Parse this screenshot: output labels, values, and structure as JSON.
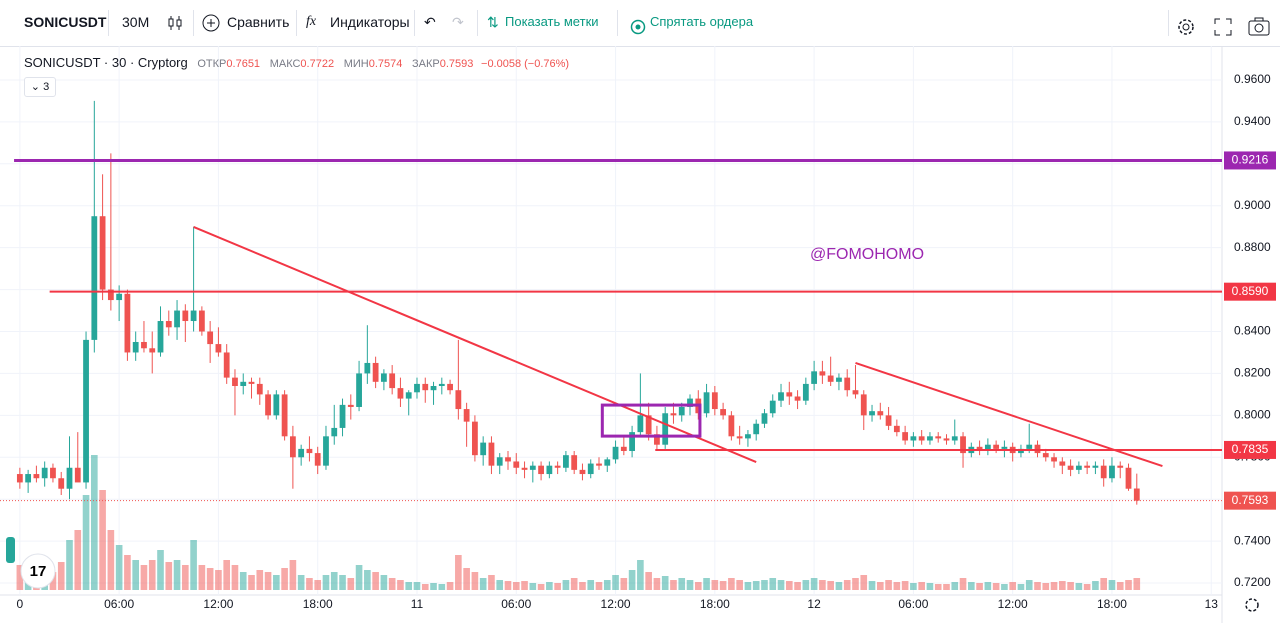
{
  "toolbar": {
    "symbol": "SONICUSDT",
    "interval": "30M",
    "compare": "Сравнить",
    "indicators": "Индикаторы",
    "show_marks": "Показать метки",
    "hide_orders": "Спрятать ордера"
  },
  "legend": {
    "title": "SONICUSDT · 30 · Cryptorg",
    "ohlc_labels": [
      "ОТКР",
      "МАКС",
      "МИН",
      "ЗАКР"
    ],
    "change": "−0.0058 (−0.76%)",
    "indicators_count": "3"
  },
  "chart_data": {
    "type": "candlestick",
    "watermark": "@FOMOHOMO",
    "up_color": "#26a69a",
    "down_color": "#ef5350",
    "grid": true,
    "xlim": [
      -2.4,
      145.3
    ],
    "ylim": [
      0.7143,
      0.9762
    ],
    "xticks": [
      {
        "value": 0,
        "label": "0"
      },
      {
        "value": 12,
        "label": "06:00"
      },
      {
        "value": 24,
        "label": "12:00"
      },
      {
        "value": 36,
        "label": "18:00"
      },
      {
        "value": 48,
        "label": "11"
      },
      {
        "value": 60,
        "label": "06:00"
      },
      {
        "value": 72,
        "label": "12:00"
      },
      {
        "value": 84,
        "label": "18:00"
      },
      {
        "value": 96,
        "label": "12"
      },
      {
        "value": 108,
        "label": "06:00"
      },
      {
        "value": 120,
        "label": "12:00"
      },
      {
        "value": 132,
        "label": "18:00"
      },
      {
        "value": 144,
        "label": "13"
      }
    ],
    "yticks": [
      {
        "value": 0.72,
        "label": "0.7200"
      },
      {
        "value": 0.74,
        "label": "0.7400"
      },
      {
        "value": 0.76,
        "label": "0.7600"
      },
      {
        "value": 0.78,
        "label": "0.7800"
      },
      {
        "value": 0.8,
        "label": "0.8000"
      },
      {
        "value": 0.82,
        "label": "0.8200"
      },
      {
        "value": 0.84,
        "label": "0.8400"
      },
      {
        "value": 0.86,
        "label": "0.8600"
      },
      {
        "value": 0.88,
        "label": "0.8800"
      },
      {
        "value": 0.9,
        "label": "0.9000"
      },
      {
        "value": 0.92,
        "label": "0.9200"
      },
      {
        "value": 0.94,
        "label": "0.9400"
      },
      {
        "value": 0.96,
        "label": "0.9600"
      }
    ],
    "levels": [
      {
        "value": 0.9216,
        "label": "0.9216",
        "color": "#9c27b0",
        "from": -0.7
      },
      {
        "value": 0.859,
        "label": "0.8590",
        "color": "#f23645",
        "from": 3.6
      },
      {
        "value": 0.7835,
        "label": "0.7835",
        "color": "#f23645",
        "from": 76.8
      }
    ],
    "drawings": [
      {
        "type": "trendline",
        "x": [
          21,
          89
        ],
        "y": [
          0.8899,
          0.7777
        ],
        "color": "#f23645"
      },
      {
        "type": "trendline",
        "x": [
          101,
          138.1
        ],
        "y": [
          0.825,
          0.7758
        ],
        "color": "#f23645"
      },
      {
        "type": "rectangle",
        "x": [
          70.4,
          82.2
        ],
        "y": [
          0.8049,
          0.7901
        ],
        "color": "#9c27b0"
      }
    ],
    "candles": [
      [
        0.772,
        0.775,
        0.765,
        0.768,
        25
      ],
      [
        0.768,
        0.774,
        0.763,
        0.772,
        20
      ],
      [
        0.772,
        0.776,
        0.768,
        0.77,
        15
      ],
      [
        0.77,
        0.778,
        0.766,
        0.775,
        22
      ],
      [
        0.775,
        0.777,
        0.768,
        0.77,
        18
      ],
      [
        0.77,
        0.773,
        0.762,
        0.765,
        28
      ],
      [
        0.765,
        0.79,
        0.76,
        0.775,
        50
      ],
      [
        0.775,
        0.792,
        0.77,
        0.768,
        60
      ],
      [
        0.768,
        0.84,
        0.765,
        0.836,
        95
      ],
      [
        0.836,
        0.95,
        0.83,
        0.895,
        135
      ],
      [
        0.895,
        0.915,
        0.855,
        0.86,
        100
      ],
      [
        0.86,
        0.925,
        0.85,
        0.855,
        60
      ],
      [
        0.855,
        0.862,
        0.845,
        0.858,
        45
      ],
      [
        0.858,
        0.86,
        0.826,
        0.83,
        35
      ],
      [
        0.83,
        0.84,
        0.826,
        0.835,
        30
      ],
      [
        0.835,
        0.845,
        0.83,
        0.832,
        25
      ],
      [
        0.832,
        0.84,
        0.82,
        0.83,
        30
      ],
      [
        0.83,
        0.852,
        0.828,
        0.845,
        40
      ],
      [
        0.845,
        0.85,
        0.838,
        0.842,
        28
      ],
      [
        0.842,
        0.855,
        0.836,
        0.85,
        30
      ],
      [
        0.85,
        0.853,
        0.835,
        0.845,
        25
      ],
      [
        0.845,
        0.89,
        0.84,
        0.85,
        50
      ],
      [
        0.85,
        0.852,
        0.838,
        0.84,
        25
      ],
      [
        0.84,
        0.845,
        0.825,
        0.834,
        22
      ],
      [
        0.834,
        0.842,
        0.828,
        0.83,
        20
      ],
      [
        0.83,
        0.834,
        0.815,
        0.818,
        30
      ],
      [
        0.818,
        0.822,
        0.8,
        0.814,
        25
      ],
      [
        0.814,
        0.82,
        0.81,
        0.816,
        18
      ],
      [
        0.816,
        0.818,
        0.808,
        0.815,
        15
      ],
      [
        0.815,
        0.818,
        0.805,
        0.81,
        20
      ],
      [
        0.81,
        0.812,
        0.798,
        0.8,
        18
      ],
      [
        0.8,
        0.812,
        0.798,
        0.81,
        15
      ],
      [
        0.81,
        0.812,
        0.788,
        0.79,
        22
      ],
      [
        0.79,
        0.795,
        0.765,
        0.78,
        30
      ],
      [
        0.78,
        0.786,
        0.776,
        0.784,
        15
      ],
      [
        0.784,
        0.79,
        0.778,
        0.782,
        12
      ],
      [
        0.782,
        0.785,
        0.772,
        0.776,
        10
      ],
      [
        0.776,
        0.795,
        0.774,
        0.79,
        15
      ],
      [
        0.79,
        0.805,
        0.786,
        0.794,
        18
      ],
      [
        0.794,
        0.808,
        0.79,
        0.805,
        15
      ],
      [
        0.805,
        0.81,
        0.798,
        0.804,
        12
      ],
      [
        0.804,
        0.826,
        0.802,
        0.82,
        25
      ],
      [
        0.82,
        0.843,
        0.815,
        0.825,
        20
      ],
      [
        0.825,
        0.828,
        0.813,
        0.816,
        18
      ],
      [
        0.816,
        0.822,
        0.812,
        0.82,
        15
      ],
      [
        0.82,
        0.824,
        0.81,
        0.813,
        12
      ],
      [
        0.813,
        0.818,
        0.804,
        0.808,
        10
      ],
      [
        0.808,
        0.812,
        0.8,
        0.811,
        8
      ],
      [
        0.811,
        0.818,
        0.808,
        0.815,
        8
      ],
      [
        0.815,
        0.818,
        0.806,
        0.812,
        6
      ],
      [
        0.812,
        0.816,
        0.805,
        0.814,
        7
      ],
      [
        0.814,
        0.818,
        0.81,
        0.815,
        6
      ],
      [
        0.815,
        0.817,
        0.81,
        0.812,
        8
      ],
      [
        0.812,
        0.836,
        0.798,
        0.803,
        35
      ],
      [
        0.803,
        0.806,
        0.785,
        0.797,
        22
      ],
      [
        0.797,
        0.8,
        0.778,
        0.781,
        18
      ],
      [
        0.781,
        0.79,
        0.776,
        0.787,
        12
      ],
      [
        0.787,
        0.79,
        0.772,
        0.776,
        15
      ],
      [
        0.776,
        0.782,
        0.772,
        0.78,
        10
      ],
      [
        0.78,
        0.783,
        0.774,
        0.778,
        9
      ],
      [
        0.778,
        0.782,
        0.772,
        0.775,
        8
      ],
      [
        0.775,
        0.778,
        0.77,
        0.774,
        9
      ],
      [
        0.774,
        0.778,
        0.768,
        0.776,
        7
      ],
      [
        0.776,
        0.778,
        0.769,
        0.772,
        6
      ],
      [
        0.772,
        0.778,
        0.77,
        0.776,
        8
      ],
      [
        0.776,
        0.778,
        0.772,
        0.775,
        7
      ],
      [
        0.775,
        0.783,
        0.773,
        0.781,
        10
      ],
      [
        0.781,
        0.783,
        0.772,
        0.774,
        12
      ],
      [
        0.774,
        0.777,
        0.769,
        0.772,
        8
      ],
      [
        0.772,
        0.779,
        0.77,
        0.777,
        10
      ],
      [
        0.777,
        0.78,
        0.774,
        0.776,
        8
      ],
      [
        0.776,
        0.78,
        0.773,
        0.779,
        10
      ],
      [
        0.779,
        0.788,
        0.777,
        0.785,
        15
      ],
      [
        0.785,
        0.79,
        0.781,
        0.783,
        12
      ],
      [
        0.783,
        0.795,
        0.78,
        0.792,
        20
      ],
      [
        0.792,
        0.82,
        0.79,
        0.8,
        30
      ],
      [
        0.8,
        0.806,
        0.788,
        0.791,
        18
      ],
      [
        0.791,
        0.795,
        0.783,
        0.786,
        12
      ],
      [
        0.786,
        0.804,
        0.784,
        0.801,
        14
      ],
      [
        0.801,
        0.806,
        0.796,
        0.8,
        10
      ],
      [
        0.8,
        0.806,
        0.797,
        0.804,
        12
      ],
      [
        0.804,
        0.81,
        0.8,
        0.808,
        10
      ],
      [
        0.808,
        0.812,
        0.798,
        0.801,
        8
      ],
      [
        0.801,
        0.815,
        0.799,
        0.811,
        12
      ],
      [
        0.811,
        0.814,
        0.8,
        0.803,
        10
      ],
      [
        0.803,
        0.806,
        0.798,
        0.8,
        9
      ],
      [
        0.8,
        0.802,
        0.788,
        0.79,
        12
      ],
      [
        0.79,
        0.795,
        0.786,
        0.789,
        10
      ],
      [
        0.789,
        0.793,
        0.785,
        0.791,
        8
      ],
      [
        0.791,
        0.798,
        0.788,
        0.796,
        9
      ],
      [
        0.796,
        0.803,
        0.794,
        0.801,
        10
      ],
      [
        0.801,
        0.81,
        0.799,
        0.807,
        12
      ],
      [
        0.807,
        0.815,
        0.804,
        0.811,
        10
      ],
      [
        0.811,
        0.816,
        0.805,
        0.809,
        9
      ],
      [
        0.809,
        0.812,
        0.803,
        0.807,
        8
      ],
      [
        0.807,
        0.818,
        0.805,
        0.815,
        10
      ],
      [
        0.815,
        0.826,
        0.812,
        0.821,
        12
      ],
      [
        0.821,
        0.826,
        0.815,
        0.819,
        10
      ],
      [
        0.819,
        0.828,
        0.814,
        0.816,
        9
      ],
      [
        0.816,
        0.82,
        0.812,
        0.818,
        8
      ],
      [
        0.818,
        0.822,
        0.809,
        0.812,
        10
      ],
      [
        0.812,
        0.824,
        0.808,
        0.81,
        12
      ],
      [
        0.81,
        0.812,
        0.793,
        0.8,
        15
      ],
      [
        0.8,
        0.805,
        0.797,
        0.802,
        9
      ],
      [
        0.802,
        0.806,
        0.798,
        0.8,
        8
      ],
      [
        0.8,
        0.804,
        0.793,
        0.795,
        10
      ],
      [
        0.795,
        0.798,
        0.79,
        0.792,
        8
      ],
      [
        0.792,
        0.795,
        0.786,
        0.788,
        9
      ],
      [
        0.788,
        0.792,
        0.785,
        0.79,
        7
      ],
      [
        0.79,
        0.793,
        0.786,
        0.788,
        8
      ],
      [
        0.788,
        0.792,
        0.786,
        0.79,
        7
      ],
      [
        0.79,
        0.792,
        0.787,
        0.789,
        6
      ],
      [
        0.789,
        0.791,
        0.786,
        0.788,
        6
      ],
      [
        0.788,
        0.798,
        0.786,
        0.79,
        8
      ],
      [
        0.79,
        0.792,
        0.775,
        0.782,
        12
      ],
      [
        0.782,
        0.787,
        0.78,
        0.785,
        8
      ],
      [
        0.785,
        0.788,
        0.781,
        0.783,
        7
      ],
      [
        0.783,
        0.789,
        0.781,
        0.786,
        8
      ],
      [
        0.786,
        0.788,
        0.782,
        0.784,
        7
      ],
      [
        0.784,
        0.788,
        0.78,
        0.785,
        6
      ],
      [
        0.785,
        0.787,
        0.778,
        0.782,
        8
      ],
      [
        0.782,
        0.786,
        0.78,
        0.784,
        6
      ],
      [
        0.784,
        0.796,
        0.782,
        0.786,
        10
      ],
      [
        0.786,
        0.788,
        0.78,
        0.782,
        8
      ],
      [
        0.782,
        0.784,
        0.778,
        0.78,
        7
      ],
      [
        0.78,
        0.782,
        0.775,
        0.778,
        8
      ],
      [
        0.778,
        0.78,
        0.772,
        0.776,
        9
      ],
      [
        0.776,
        0.779,
        0.771,
        0.774,
        8
      ],
      [
        0.774,
        0.778,
        0.772,
        0.776,
        7
      ],
      [
        0.776,
        0.778,
        0.772,
        0.775,
        6
      ],
      [
        0.775,
        0.778,
        0.772,
        0.776,
        9
      ],
      [
        0.776,
        0.779,
        0.766,
        0.77,
        12
      ],
      [
        0.77,
        0.78,
        0.768,
        0.776,
        10
      ],
      [
        0.776,
        0.778,
        0.77,
        0.775,
        8
      ],
      [
        0.775,
        0.777,
        0.764,
        0.765,
        10
      ],
      [
        0.7651,
        0.7722,
        0.7574,
        0.7593,
        12
      ]
    ]
  }
}
